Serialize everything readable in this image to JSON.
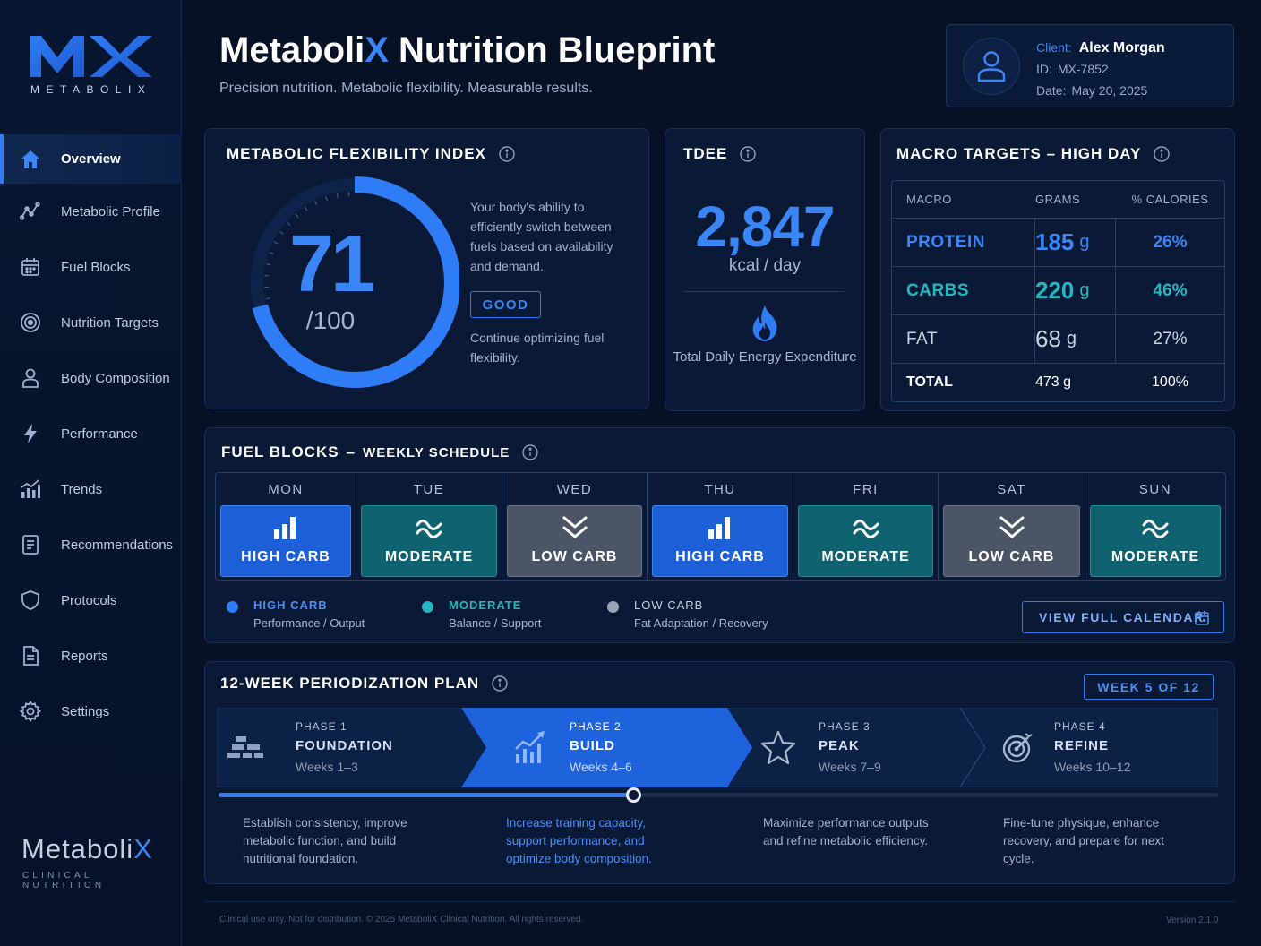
{
  "brand": {
    "logo_letters": "MX",
    "logo_sub": "METABOLIX",
    "bottom_name_a": "Metaboli",
    "bottom_name_b": "X",
    "bottom_sub": "CLINICAL NUTRITION"
  },
  "sidebar": {
    "items": [
      {
        "label": "Overview",
        "icon": "home-icon",
        "active": true
      },
      {
        "label": "Metabolic Profile",
        "icon": "line-graph-icon"
      },
      {
        "label": "Fuel Blocks",
        "icon": "calendar-icon"
      },
      {
        "label": "Nutrition Targets",
        "icon": "target-icon"
      },
      {
        "label": "Body Composition",
        "icon": "person-icon"
      },
      {
        "label": "Performance",
        "icon": "lightning-icon"
      },
      {
        "label": "Trends",
        "icon": "bar-trend-icon"
      },
      {
        "label": "Recommendations",
        "icon": "document-list-icon"
      },
      {
        "label": "Protocols",
        "icon": "shield-icon"
      },
      {
        "label": "Reports",
        "icon": "report-icon"
      },
      {
        "label": "Settings",
        "icon": "gear-icon"
      }
    ]
  },
  "header": {
    "title_a": "Metaboli",
    "title_b": "X",
    "title_c": " Nutrition Blueprint",
    "subtitle": "Precision nutrition. Metabolic flexibility. Measurable results."
  },
  "client": {
    "client_label": "Client:",
    "name": "Alex Morgan",
    "id_label": "ID:",
    "id": "MX-7852",
    "date_label": "Date:",
    "date": "May 20, 2025"
  },
  "mfi": {
    "title": "METABOLIC FLEXIBILITY INDEX",
    "score": "71",
    "denominator": "/100",
    "score_fraction": 0.71,
    "description": "Your body's ability to efficiently switch between fuels based on availability and demand.",
    "rating": "GOOD",
    "note": "Continue optimizing fuel flexibility."
  },
  "tdee": {
    "title": "TDEE",
    "value": "2,847",
    "unit": "kcal / day",
    "description": "Total Daily Energy Expenditure"
  },
  "macros": {
    "title": "MACRO TARGETS – HIGH DAY",
    "headers": [
      "MACRO",
      "GRAMS",
      "% CALORIES"
    ],
    "rows": [
      {
        "name": "PROTEIN",
        "grams": "185",
        "unit": "g",
        "pct": "26%",
        "color": "#3b86f7"
      },
      {
        "name": "CARBS",
        "grams": "220",
        "unit": "g",
        "pct": "46%",
        "color": "#25b6bf"
      },
      {
        "name": "FAT",
        "grams": "68",
        "unit": "g",
        "pct": "27%",
        "color": "#c9d3e3"
      }
    ],
    "total": {
      "name": "TOTAL",
      "grams": "473 g",
      "pct": "100%"
    }
  },
  "fuel_blocks": {
    "title_a": "FUEL BLOCKS",
    "title_sep": "–",
    "title_b": "WEEKLY SCHEDULE",
    "days": [
      {
        "day": "MON",
        "type": "HIGH CARB",
        "kind": "high"
      },
      {
        "day": "TUE",
        "type": "MODERATE",
        "kind": "mod"
      },
      {
        "day": "WED",
        "type": "LOW CARB",
        "kind": "low"
      },
      {
        "day": "THU",
        "type": "HIGH CARB",
        "kind": "high"
      },
      {
        "day": "FRI",
        "type": "MODERATE",
        "kind": "mod"
      },
      {
        "day": "SAT",
        "type": "LOW CARB",
        "kind": "low"
      },
      {
        "day": "SUN",
        "type": "MODERATE",
        "kind": "mod"
      }
    ],
    "legend": [
      {
        "name": "HIGH CARB",
        "desc": "Performance / Output",
        "color": "#2f7df6",
        "name_color": "#4d8ff7"
      },
      {
        "name": "MODERATE",
        "desc": "Balance / Support",
        "color": "#25b6bf",
        "name_color": "#25b6bf"
      },
      {
        "name": "LOW CARB",
        "desc": "Fat Adaptation / Recovery",
        "color": "#9aa4b5",
        "name_color": "#c6cfdd"
      }
    ],
    "calendar_button": "VIEW FULL CALENDAR"
  },
  "plan": {
    "title": "12-WEEK PERIODIZATION PLAN",
    "week_badge": "WEEK 5 OF 12",
    "progress_fraction": 0.415,
    "phases": [
      {
        "num": "PHASE 1",
        "name": "FOUNDATION",
        "weeks": "Weeks 1–3",
        "icon": "bricks-icon",
        "desc": "Establish consistency, improve metabolic function, and build nutritional foundation."
      },
      {
        "num": "PHASE 2",
        "name": "BUILD",
        "weeks": "Weeks 4–6",
        "icon": "growth-chart-icon",
        "active": true,
        "desc": "Increase training capacity, support performance, and optimize body composition."
      },
      {
        "num": "PHASE 3",
        "name": "PEAK",
        "weeks": "Weeks 7–9",
        "icon": "star-icon",
        "desc": "Maximize performance outputs and refine metabolic efficiency."
      },
      {
        "num": "PHASE 4",
        "name": "REFINE",
        "weeks": "Weeks 10–12",
        "icon": "bullseye-icon",
        "desc": "Fine-tune physique, enhance recovery, and prepare for next cycle."
      }
    ]
  },
  "footer": {
    "disclaimer": "Clinical use only. Not for distribution. © 2025 MetaboliX Clinical Nutrition. All rights reserved.",
    "version": "Version 2.1.0"
  },
  "colors": {
    "accent": "#2f7df6",
    "teal": "#25b6bf",
    "background": "#061126"
  }
}
